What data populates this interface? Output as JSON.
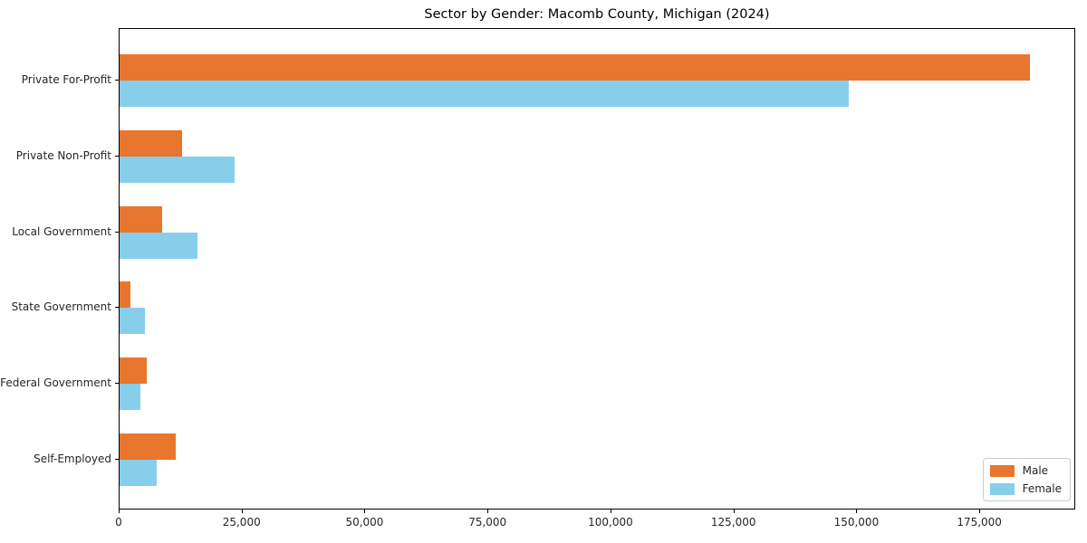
{
  "figure": {
    "title": "Sector by Gender: Macomb County, Michigan (2024)"
  },
  "chart_data": {
    "type": "bar",
    "orientation": "horizontal",
    "title": "Sector by Gender: Macomb County, Michigan (2024)",
    "categories": [
      "Private For-Profit",
      "Private Non-Profit",
      "Local Government",
      "State Government",
      "Federal Government",
      "Self-Employed"
    ],
    "series": [
      {
        "name": "Male",
        "color": "#e8762e",
        "values": [
          185500,
          12700,
          8700,
          2200,
          5500,
          11500
        ]
      },
      {
        "name": "Female",
        "color": "#87ceeb",
        "values": [
          148500,
          23500,
          15800,
          5200,
          4300,
          7500
        ]
      }
    ],
    "xlabel": "",
    "ylabel": "",
    "xlim": [
      0,
      194500
    ],
    "xticks": {
      "values": [
        0,
        25000,
        50000,
        75000,
        100000,
        125000,
        150000,
        175000
      ],
      "labels": [
        "0",
        "25,000",
        "50,000",
        "75,000",
        "100,000",
        "125,000",
        "150,000",
        "175,000"
      ]
    },
    "legend": {
      "position": "lower right",
      "entries": [
        "Male",
        "Female"
      ]
    },
    "grid": false,
    "colors": {
      "frame": "#000000",
      "text": "#262626",
      "legend_border": "#cccccc",
      "background": "#ffffff"
    }
  }
}
